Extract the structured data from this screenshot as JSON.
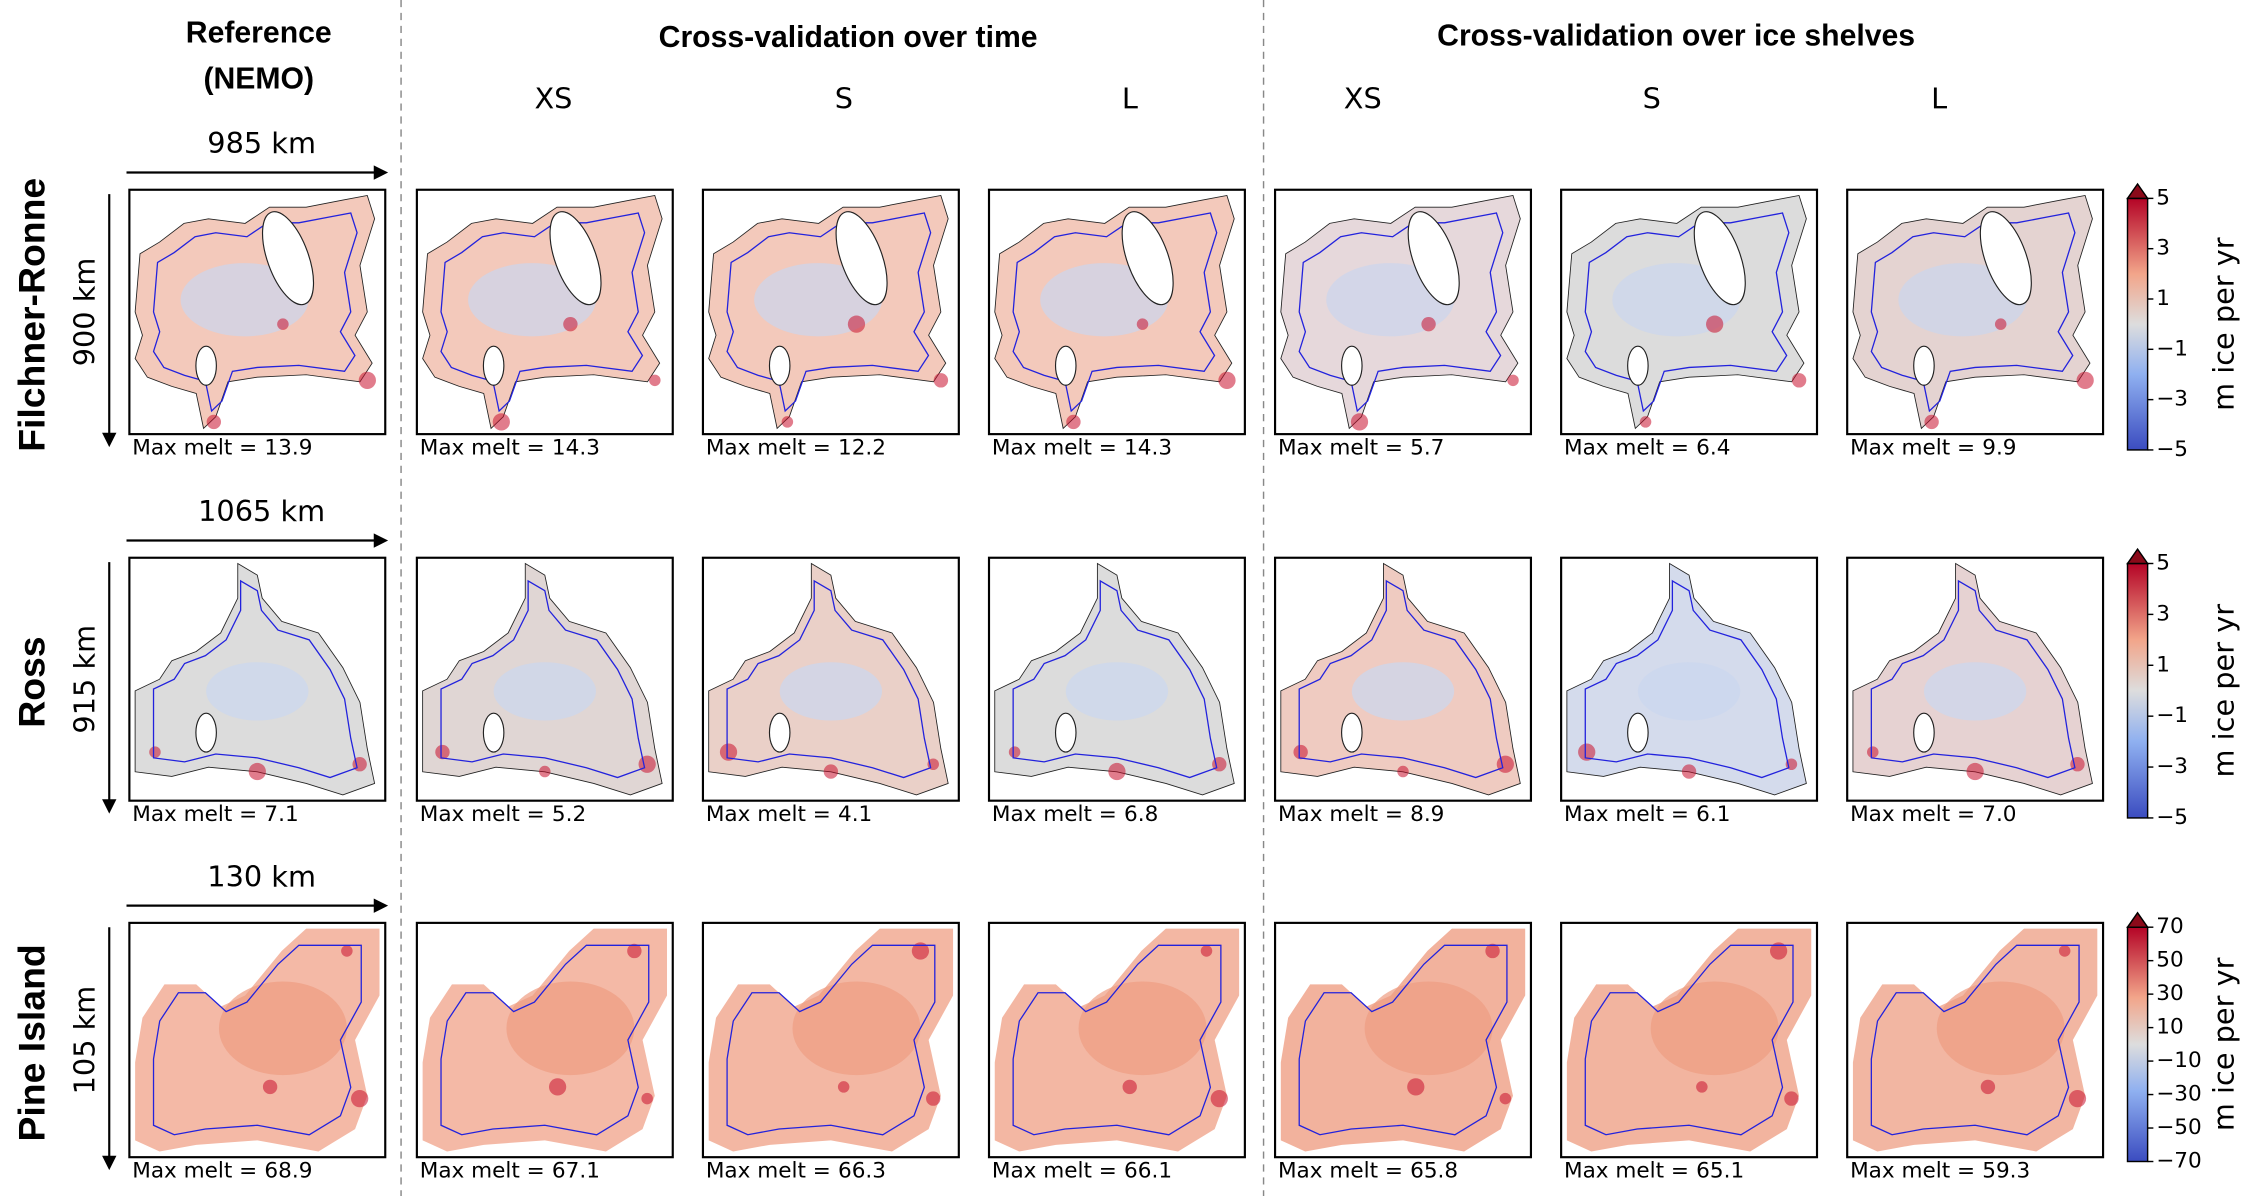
{
  "header": {
    "reference": [
      "Reference",
      "(NEMO)"
    ],
    "groups": [
      "Cross-validation over time",
      "Cross-validation over ice shelves"
    ],
    "columns": [
      "XS",
      "S",
      "L",
      "XS",
      "S",
      "L"
    ]
  },
  "max_melt_label": "Max melt =",
  "rows": [
    {
      "name": "Filchner-Ronne",
      "width": "985 km",
      "height": "900 km",
      "max_melt": [
        "13.9",
        "14.3",
        "12.2",
        "14.3",
        "5.7",
        "6.4",
        "9.9"
      ],
      "colorbar": {
        "label": "m ice per yr",
        "limits": [
          -5,
          5
        ],
        "ticks": [
          5,
          3,
          1,
          {
            "value": -1,
            "label": "−1"
          },
          {
            "value": -3,
            "label": "−3"
          },
          {
            "value": -5,
            "label": "−5"
          }
        ]
      }
    },
    {
      "name": "Ross",
      "width": "1065 km",
      "height": "915 km",
      "max_melt": [
        "7.1",
        "5.2",
        "4.1",
        "6.8",
        "8.9",
        "6.1",
        "7.0"
      ],
      "colorbar": {
        "label": "m ice per yr",
        "limits": [
          -5,
          5
        ],
        "ticks": [
          5,
          3,
          1,
          {
            "value": -1,
            "label": "−1"
          },
          {
            "value": -3,
            "label": "−3"
          },
          {
            "value": -5,
            "label": "−5"
          }
        ]
      }
    },
    {
      "name": "Pine Island",
      "width": "130 km",
      "height": "105 km",
      "max_melt": [
        "68.9",
        "67.1",
        "66.3",
        "66.1",
        "65.8",
        "65.1",
        "59.3"
      ],
      "colorbar": {
        "label": "m ice per yr",
        "limits": [
          -70,
          70
        ],
        "ticks": [
          70,
          50,
          30,
          10,
          {
            "value": -10,
            "label": "−10"
          },
          {
            "value": -30,
            "label": "−30"
          },
          {
            "value": -50,
            "label": "−50"
          },
          {
            "value": -70,
            "label": "−70"
          }
        ]
      }
    }
  ]
}
